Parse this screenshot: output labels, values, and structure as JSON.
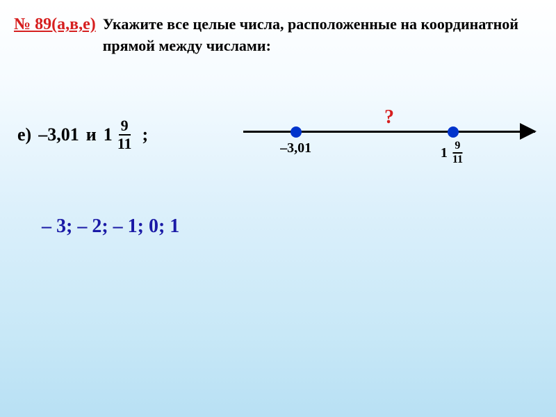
{
  "header": {
    "problem_number": "№ 89(а,в,е)",
    "problem_text": "Укажите все целые числа, расположенные на координатной прямой между числами:"
  },
  "part": {
    "label": "e)",
    "value1": "–3,01",
    "connector": "и",
    "value2_whole": "1",
    "value2_num": "9",
    "value2_den": "11",
    "terminator": ";"
  },
  "number_line": {
    "axis_color": "#000000",
    "point_color": "#0033cc",
    "question_color": "#d61f1f",
    "point1": {
      "x_percent": 18,
      "label": "–3,01"
    },
    "point2": {
      "x_percent": 72,
      "label_whole": "1",
      "label_num": "9",
      "label_den": "11"
    },
    "question": {
      "x_percent": 50,
      "text": "?"
    }
  },
  "answer": {
    "text": "– 3; – 2; – 1; 0;  1",
    "color": "#1a1aa6",
    "fontsize": 28
  }
}
